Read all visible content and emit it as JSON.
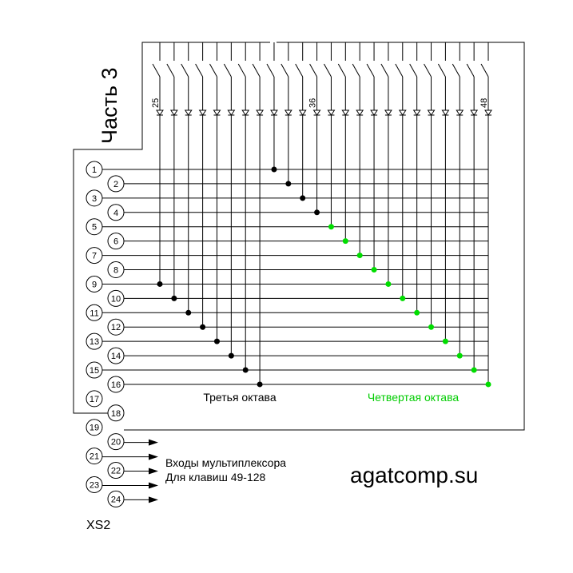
{
  "title": "Часть 3",
  "key_labels": [
    "25",
    "36",
    "48"
  ],
  "pins": [
    "1",
    "2",
    "3",
    "4",
    "5",
    "6",
    "7",
    "8",
    "9",
    "10",
    "11",
    "12",
    "13",
    "14",
    "15",
    "16",
    "17",
    "18",
    "19",
    "20",
    "21",
    "22",
    "23",
    "24"
  ],
  "third_octave": "Третья октава",
  "fourth_octave": "Четвертая октава",
  "note_line1": "Входы мультиплексора",
  "note_line2": "Для клавиш 49-128",
  "site": "agatcomp.su",
  "connector": "XS2"
}
